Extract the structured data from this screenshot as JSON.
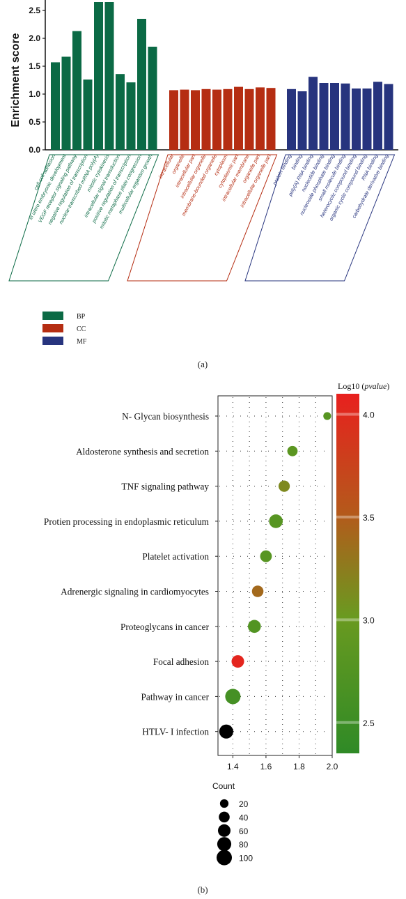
{
  "chart_data": [
    {
      "type": "bar",
      "panel_label": "(a)",
      "title": "",
      "xlabel": "",
      "ylabel": "Enrichment score",
      "ylim": [
        0,
        2.65
      ],
      "yticks": [
        "0.0",
        "0.5",
        "1.0",
        "1.5",
        "2.0",
        "2.5"
      ],
      "grid": false,
      "legend_position": "bottom-left",
      "groups": [
        {
          "name": "BP",
          "color": "#0b6a45",
          "categories": [
            "cell-cell adhesion",
            "in utero embryonic development",
            "VEGF receptor signaling pathway",
            "negative regulation of transcription",
            "nuclear-transcribed mRNA poly(A)",
            "mitotic cytokinesis",
            "intracellular signal transduction",
            "positive regulation of transcription",
            "mitotic metaphase plate congression",
            "multicellular organism growth"
          ],
          "values": [
            1.57,
            1.67,
            2.13,
            1.26,
            2.65,
            2.65,
            1.36,
            1.21,
            2.35,
            1.85
          ]
        },
        {
          "name": "CC",
          "color": "#b52d12",
          "categories": [
            "intracellular",
            "organelle",
            "intracellular part",
            "intracellular organelle",
            "membrane-bounded organelle",
            "cytoplasm",
            "cytoplasmic part",
            "intracellular membrane",
            "organelle part",
            "intracellular organelle part"
          ],
          "values": [
            1.07,
            1.08,
            1.07,
            1.09,
            1.08,
            1.09,
            1.13,
            1.09,
            1.12,
            1.11
          ]
        },
        {
          "name": "MF",
          "color": "#27347e",
          "categories": [
            "protein binding",
            "binding",
            "poly(A) RNA binding",
            "nucleotide binding",
            "nucleoside phosphate binding",
            "small molecule binding",
            "heterocyclic compound binding",
            "organic cyclic compound binding",
            "RNA binding",
            "carbohydrate derivative binding"
          ],
          "values": [
            1.09,
            1.05,
            1.31,
            1.2,
            1.2,
            1.19,
            1.1,
            1.1,
            1.22,
            1.18
          ]
        }
      ],
      "legend": [
        {
          "label": "BP",
          "color": "#0b6a45"
        },
        {
          "label": "CC",
          "color": "#b52d12"
        },
        {
          "label": "MF",
          "color": "#27347e"
        }
      ]
    },
    {
      "type": "scatter",
      "panel_label": "(b)",
      "title": "",
      "xlabel": "",
      "ylabel": "",
      "xlim": [
        1.31,
        2.0
      ],
      "xticks": [
        "1.4",
        "1.6",
        "1.8",
        "2.0"
      ],
      "grid": true,
      "categories": [
        "N- Glycan biosynthesis",
        "Aldosterone synthesis and secretion",
        "TNF signaling pathway",
        "Protien processing in endoplasmic reticulum",
        "Platelet activation",
        "Adrenergic signaling in cardiomyocytes",
        "Proteoglycans in cancer",
        "Focal adhesion",
        "Pathway in cancer",
        "HTLV- I infection"
      ],
      "x": [
        1.97,
        1.76,
        1.71,
        1.66,
        1.6,
        1.55,
        1.53,
        1.43,
        1.4,
        1.36
      ],
      "count": [
        15,
        35,
        45,
        75,
        50,
        48,
        65,
        60,
        100,
        80
      ],
      "log10_pvalue": [
        2.8,
        2.85,
        3.15,
        2.8,
        2.8,
        3.4,
        2.75,
        4.05,
        2.6,
        null
      ],
      "colorbar": {
        "label_prefix": "Log10 (",
        "label_italic": "pvalue",
        "label_suffix": ")",
        "range": [
          2.35,
          4.1
        ],
        "ticks": [
          "4.0",
          "3.5",
          "3.0",
          "2.5"
        ],
        "colors": [
          "#e01f1f",
          "#b8860b",
          "#5a9b1f",
          "#2a8a2a"
        ]
      },
      "size_legend": {
        "title": "Count",
        "entries": [
          "20",
          "40",
          "60",
          "80",
          "100"
        ]
      }
    }
  ]
}
